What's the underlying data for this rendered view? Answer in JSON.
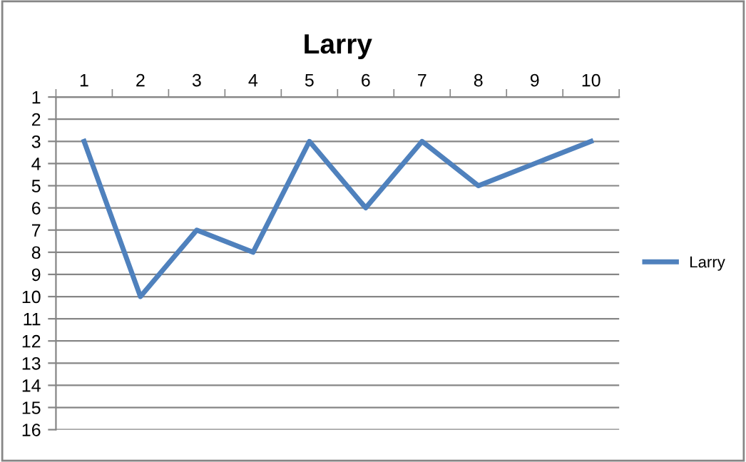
{
  "chart_data": {
    "type": "line",
    "title": "Larry",
    "categories": [
      "1",
      "2",
      "3",
      "4",
      "5",
      "6",
      "7",
      "8",
      "9",
      "10"
    ],
    "series": [
      {
        "name": "Larry",
        "color": "#4f81bd",
        "values": [
          3,
          10,
          7,
          8,
          3,
          6,
          3,
          5,
          4,
          3
        ]
      }
    ],
    "ylim": [
      16,
      1
    ],
    "yticks": [
      1,
      2,
      3,
      4,
      5,
      6,
      7,
      8,
      9,
      10,
      11,
      12,
      13,
      14,
      15,
      16
    ],
    "grid": "y",
    "legend": "right",
    "marker": "none",
    "line_style": "solid"
  }
}
